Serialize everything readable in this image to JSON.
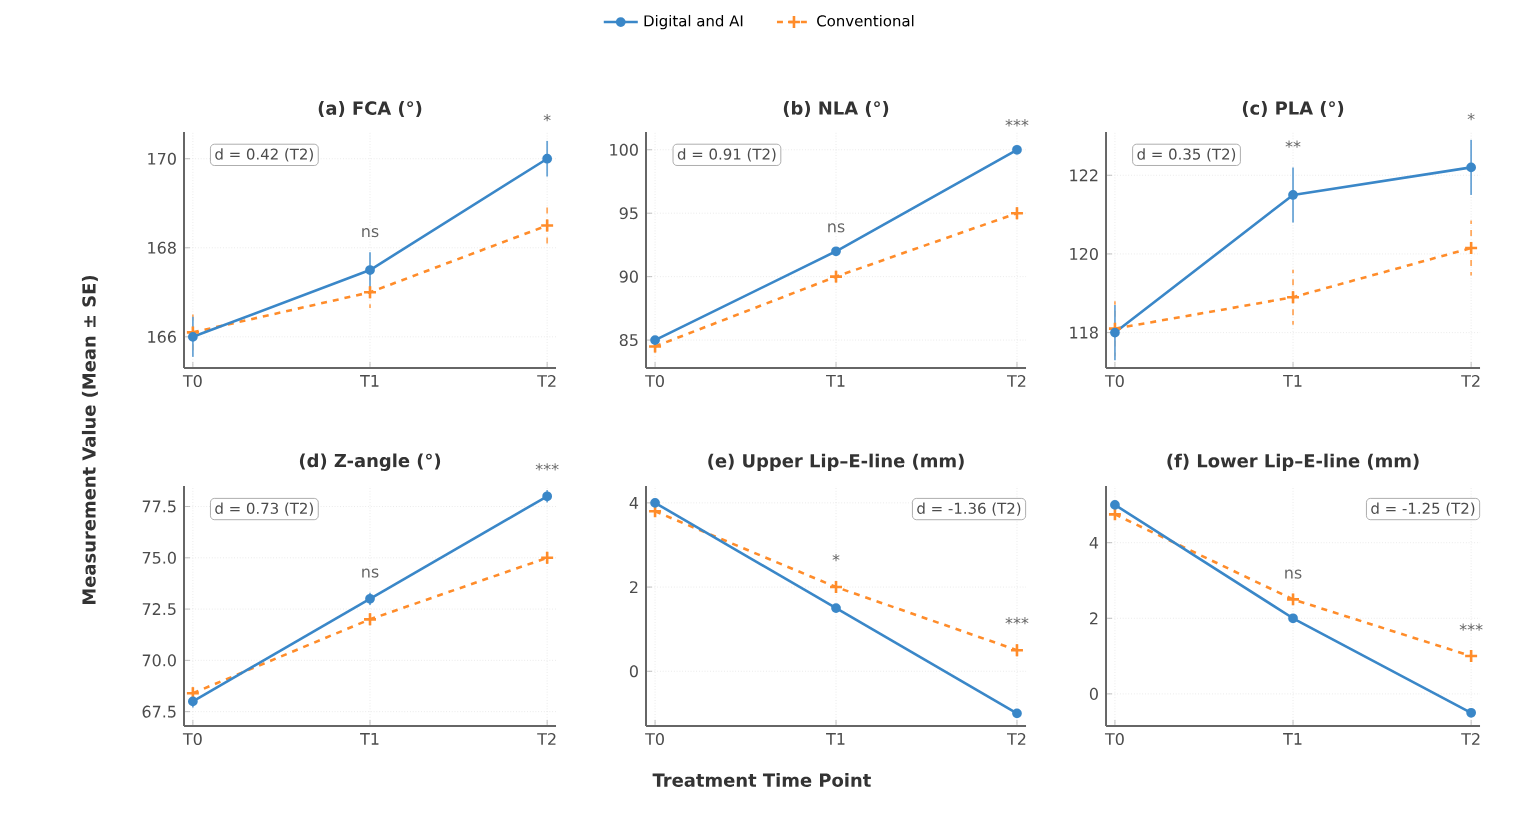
{
  "chart_data": [
    {
      "type": "line",
      "title": "(a) FCA (°)",
      "ylabel": "Measurement Value (Mean ± SE)",
      "categories": [
        "T0",
        "T1",
        "T2"
      ],
      "ylim": [
        165.3,
        170.6
      ],
      "yticks": [
        166,
        168,
        170
      ],
      "grid": true,
      "legend": "top",
      "series": [
        {
          "name": "Digital and AI",
          "color": "#3a87c8",
          "marker": "circle",
          "line_style": "solid",
          "values": [
            166,
            167.5,
            170
          ],
          "errors": [
            0.45,
            0.4,
            0.4
          ]
        },
        {
          "name": "Conventional",
          "color": "#ff8c2a",
          "marker": "cross",
          "line_style": "dashed",
          "values": [
            166.1,
            167,
            168.5
          ],
          "errors": [
            0.5,
            0.35,
            0.5
          ]
        }
      ],
      "annotations": [
        "d = 0.42 (T2)",
        "ns",
        "*"
      ]
    },
    {
      "type": "line",
      "title": "(b) NLA (°)",
      "categories": [
        "T0",
        "T1",
        "T2"
      ],
      "ylim": [
        82.8,
        101.4
      ],
      "yticks": [
        85,
        90,
        95,
        100
      ],
      "grid": true,
      "series": [
        {
          "color": "#3a87c8",
          "marker": "circle",
          "line_style": "solid",
          "values": [
            85,
            92,
            100
          ],
          "errors": [
            0.3,
            0.3,
            0.3
          ]
        },
        {
          "color": "#ff8c2a",
          "marker": "cross",
          "line_style": "dashed",
          "values": [
            84.5,
            90,
            95
          ],
          "errors": [
            0.6,
            0.6,
            0.6
          ]
        }
      ],
      "annotations": [
        "d = 0.91 (T2)",
        "ns",
        "***"
      ]
    },
    {
      "type": "line",
      "title": "(c) PLA (°)",
      "categories": [
        "T0",
        "T1",
        "T2"
      ],
      "ylim": [
        117.1,
        123.1
      ],
      "yticks": [
        118,
        120,
        122
      ],
      "grid": true,
      "series": [
        {
          "color": "#3a87c8",
          "marker": "circle",
          "line_style": "solid",
          "values": [
            118,
            121.5,
            122.2
          ],
          "errors": [
            0.7,
            0.7,
            0.7
          ]
        },
        {
          "color": "#ff8c2a",
          "marker": "cross",
          "line_style": "dashed",
          "values": [
            118.1,
            118.9,
            120.15
          ],
          "errors": [
            0.7,
            0.7,
            0.7
          ]
        }
      ],
      "annotations": [
        "d = 0.35 (T2)",
        "**",
        "*"
      ]
    },
    {
      "type": "line",
      "title": "(d) Z-angle (°)",
      "categories": [
        "T0",
        "T1",
        "T2"
      ],
      "ylim": [
        66.8,
        78.5
      ],
      "yticks": [
        {
          "value": 67.5,
          "label": "67.5"
        },
        {
          "value": 70,
          "label": "70.0"
        },
        {
          "value": 72.5,
          "label": "72.5"
        },
        {
          "value": 75,
          "label": "75.0"
        },
        {
          "value": 77.5,
          "label": "77.5"
        }
      ],
      "grid": true,
      "series": [
        {
          "color": "#3a87c8",
          "marker": "circle",
          "line_style": "solid",
          "values": [
            68,
            73,
            78
          ],
          "errors": [
            0.3,
            0.3,
            0.3
          ]
        },
        {
          "color": "#ff8c2a",
          "marker": "cross",
          "line_style": "dashed",
          "values": [
            68.4,
            72,
            75
          ],
          "errors": [
            0.4,
            0.4,
            0.4
          ]
        }
      ],
      "annotations": [
        "d = 0.73 (T2)",
        "ns",
        "***"
      ]
    },
    {
      "type": "line",
      "title": "(e) Upper Lip–E-line (mm)",
      "xlabel": "Treatment Time Point",
      "categories": [
        "T0",
        "T1",
        "T2"
      ],
      "ylim": [
        -1.3,
        4.4
      ],
      "yticks": [
        0,
        2,
        4
      ],
      "grid": true,
      "series": [
        {
          "color": "#3a87c8",
          "marker": "circle",
          "line_style": "solid",
          "values": [
            4,
            1.5,
            -1
          ],
          "errors": [
            0.1,
            0.1,
            0.1
          ]
        },
        {
          "color": "#ff8c2a",
          "marker": "cross",
          "line_style": "dashed",
          "values": [
            3.8,
            2,
            0.5
          ],
          "errors": [
            0.08,
            0.15,
            0.15
          ]
        }
      ],
      "annotations": [
        "d = -1.36 (T2)",
        "*",
        "***"
      ]
    },
    {
      "type": "line",
      "title": "(f) Lower Lip–E-line (mm)",
      "categories": [
        "T0",
        "T1",
        "T2"
      ],
      "ylim": [
        -0.85,
        5.5
      ],
      "yticks": [
        0,
        2,
        4
      ],
      "grid": true,
      "series": [
        {
          "color": "#3a87c8",
          "marker": "circle",
          "line_style": "solid",
          "values": [
            5,
            2,
            -0.5
          ],
          "errors": [
            0.1,
            0.1,
            0.1
          ]
        },
        {
          "color": "#ff8c2a",
          "marker": "cross",
          "line_style": "dashed",
          "values": [
            4.75,
            2.5,
            1.0
          ],
          "errors": [
            0.15,
            0.15,
            0.15
          ]
        }
      ],
      "annotations": [
        "d = -1.25 (T2)",
        "ns",
        "***"
      ]
    }
  ]
}
